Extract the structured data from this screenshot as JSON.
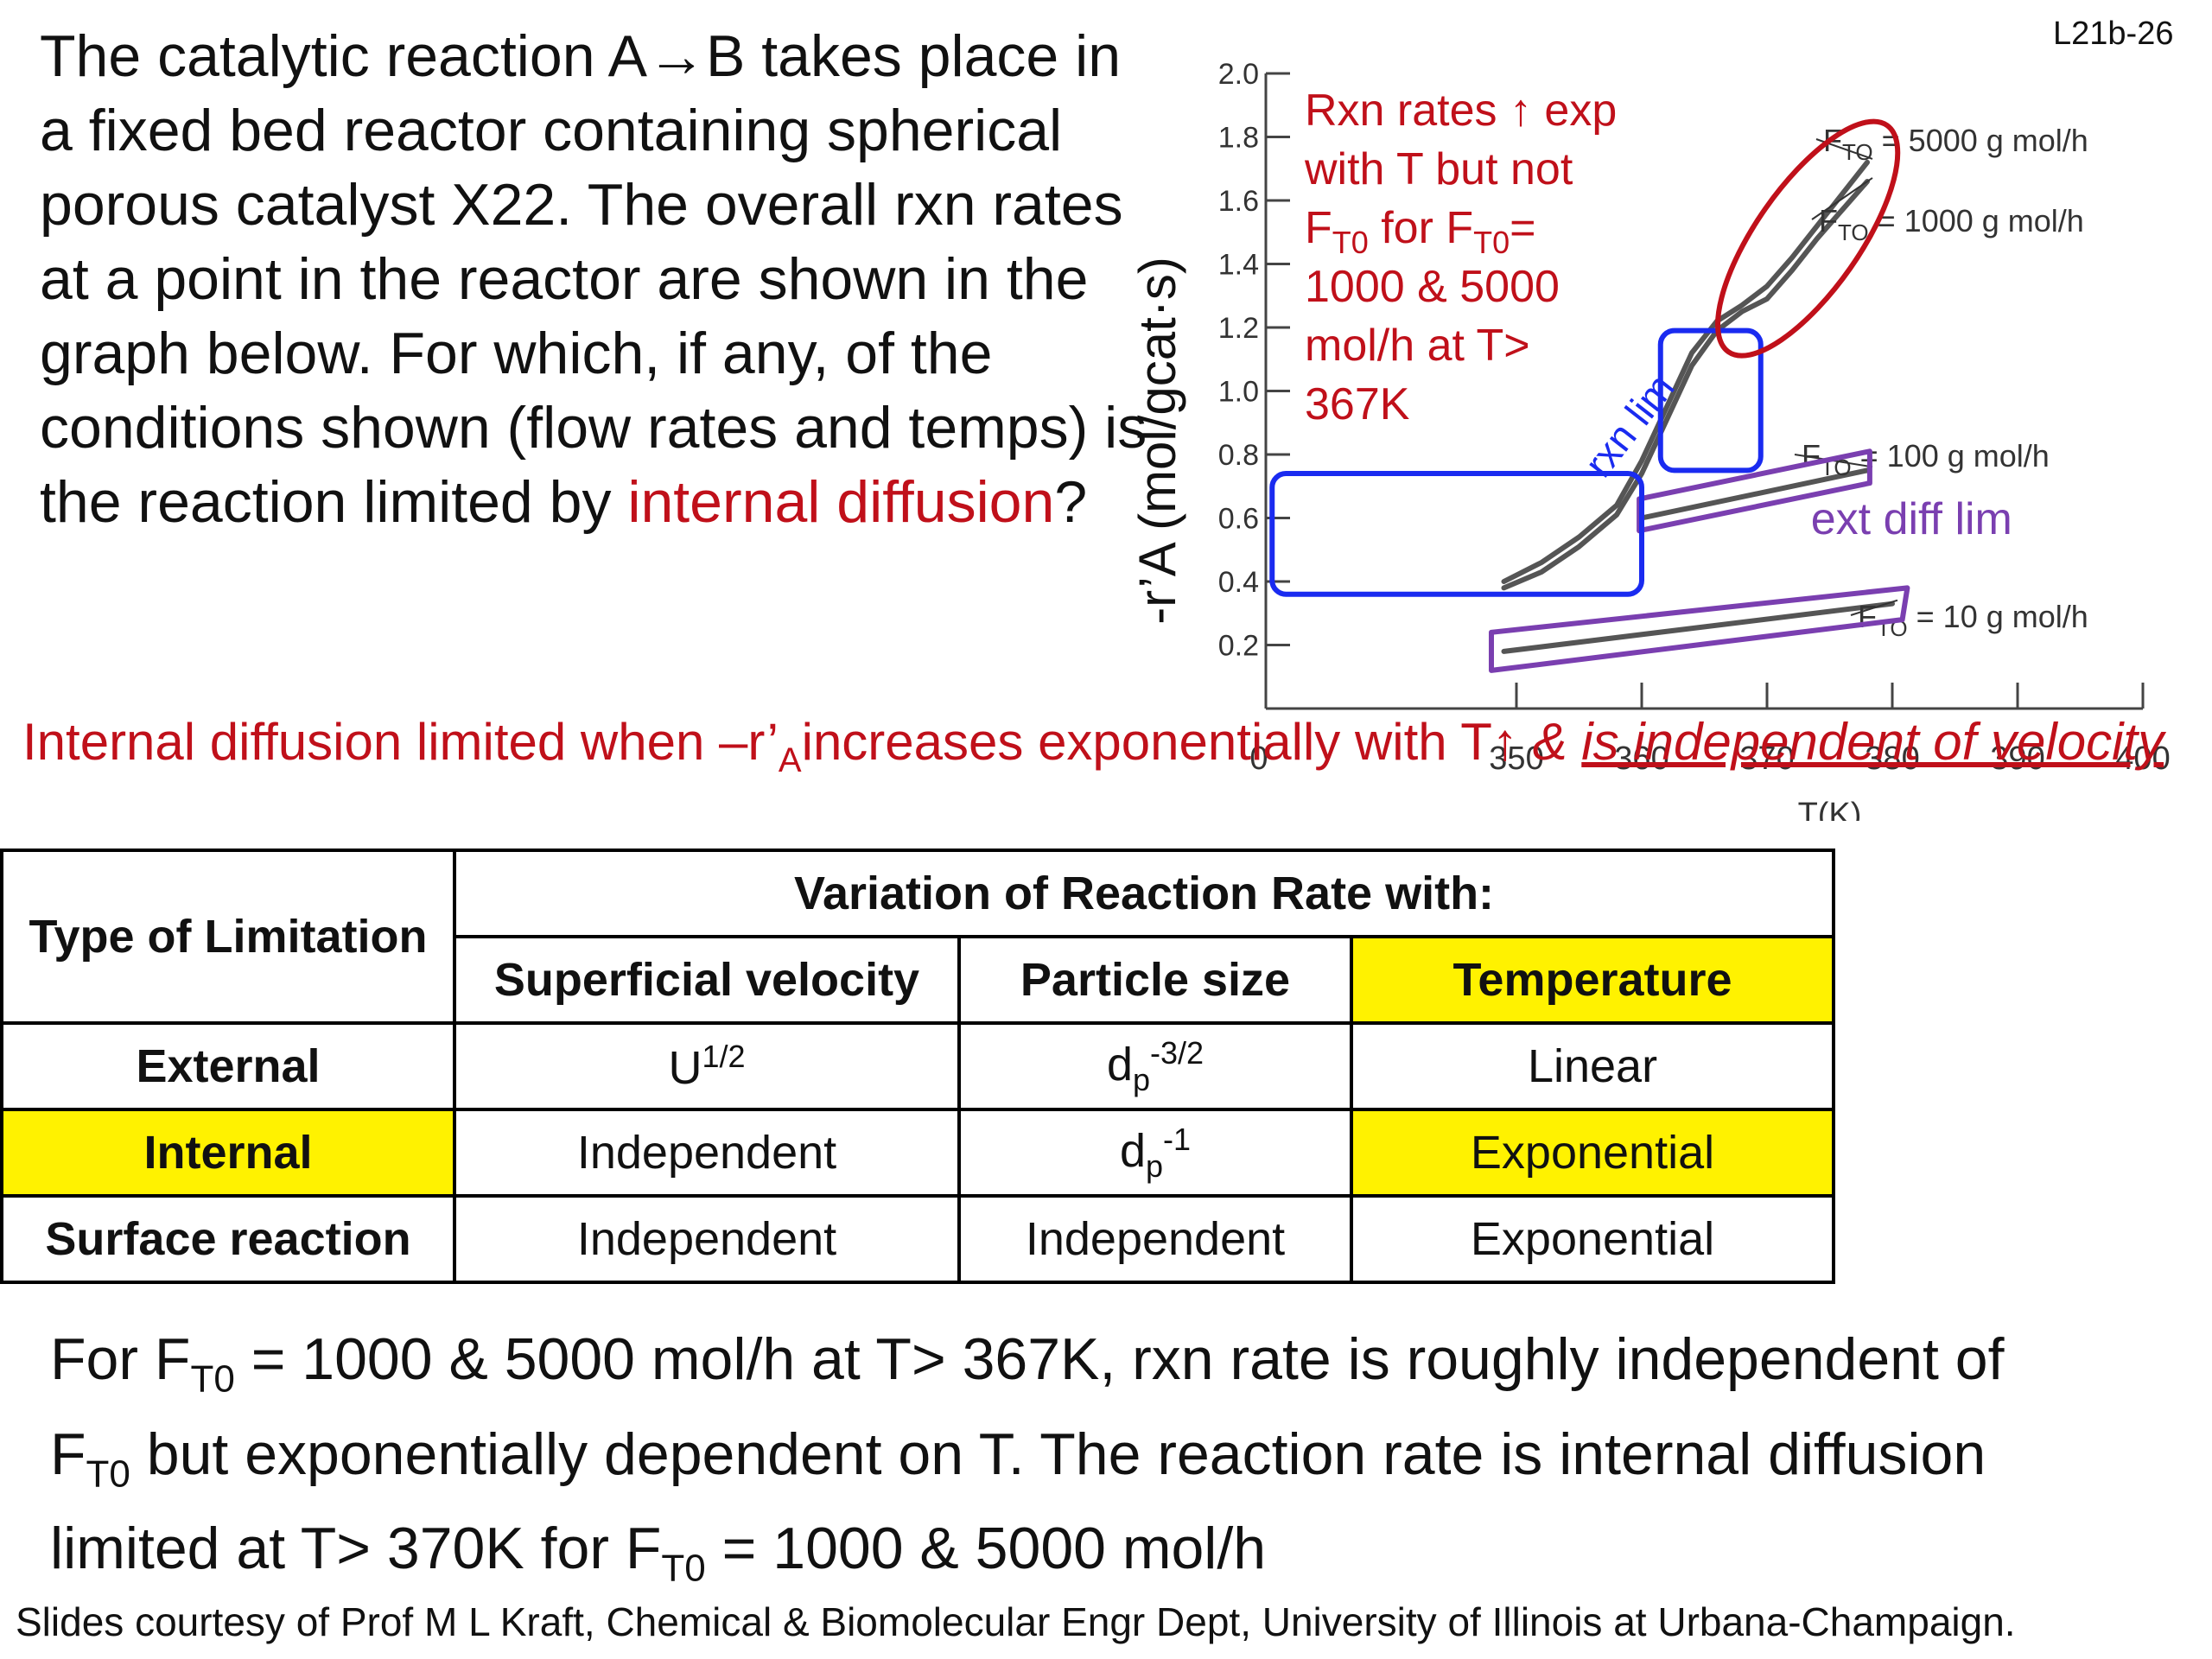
{
  "slide_number": "L21b-26",
  "question": {
    "before": "The catalytic reaction A→B takes place in a fixed bed reactor containing spherical porous catalyst X22.  The overall rxn rates at a point in the reactor are shown in the graph below. For which, if any, of the conditions shown (flow rates and temps) is the reaction limited by ",
    "highlight": "internal diffusion",
    "after": "?"
  },
  "annotation": {
    "part1": "Internal diffusion limited when  –r’",
    "sub": "A",
    "part2": "increases exponentially with T↑ ",
    "part3": "& ",
    "part4": "is independent of velocity"
  },
  "chart_data": {
    "type": "line",
    "xlabel": "T(K)",
    "ylabel": "-r’A (mol/gcat·s)",
    "xlim": [
      330,
      400
    ],
    "ylim": [
      0,
      2.0
    ],
    "x_ticks": [
      "0",
      "350",
      "360",
      "370",
      "380",
      "390",
      "400"
    ],
    "y_ticks": [
      "0.2",
      "0.4",
      "0.6",
      "0.8",
      "1.0",
      "1.2",
      "1.4",
      "1.6",
      "1.8",
      "2.0"
    ],
    "series": [
      {
        "name": "FTO = 5000 g mol/h",
        "x": [
          349,
          352,
          355,
          358,
          360,
          362,
          364,
          366,
          368,
          370,
          372,
          374,
          376,
          378
        ],
        "y": [
          0.4,
          0.46,
          0.54,
          0.64,
          0.78,
          0.95,
          1.12,
          1.22,
          1.27,
          1.33,
          1.42,
          1.52,
          1.62,
          1.72
        ]
      },
      {
        "name": "FTO = 1000 g mol/h",
        "x": [
          349,
          352,
          355,
          358,
          360,
          362,
          364,
          366,
          368,
          370,
          372,
          374,
          376,
          378
        ],
        "y": [
          0.38,
          0.43,
          0.51,
          0.61,
          0.74,
          0.91,
          1.08,
          1.19,
          1.25,
          1.29,
          1.38,
          1.48,
          1.57,
          1.66
        ]
      },
      {
        "name": "FTO = 100 g mol/h",
        "x": [
          360,
          378
        ],
        "y": [
          0.6,
          0.75
        ]
      },
      {
        "name": "FTO = 10 g mol/h",
        "x": [
          349,
          380
        ],
        "y": [
          0.18,
          0.33
        ]
      }
    ],
    "series_labels": {
      "s5000": {
        "pre": "F",
        "sub": "TO",
        "post": " = 5000 g mol/h"
      },
      "s1000": {
        "pre": "F",
        "sub": "TO",
        "post": " = 1000 g mol/h"
      },
      "s100": {
        "pre": "F",
        "sub": "TO",
        "post": " = 100 g mol/h"
      },
      "s10": {
        "pre": "F",
        "sub": "TO",
        "post": " = 10 g mol/h"
      }
    },
    "annotations": {
      "red_lines": [
        "Rxn rates ↑ exp",
        "with T but not",
        "F_T0 for F_T0=",
        "1000 & 5000",
        "mol/h at T>",
        "367K"
      ],
      "rxn_lim": "rxn lim",
      "ext_diff_lim": "ext diff lim"
    },
    "colors": {
      "curve": "#555555",
      "axis": "#444444",
      "red": "#c0101a",
      "blue": "#1a2bf0",
      "purple": "#7a3fb0"
    }
  },
  "table": {
    "header_type": "Type of Limitation",
    "header_variation": "Variation of Reaction Rate with:",
    "col_velocity": "Superficial velocity",
    "col_particle": "Particle size",
    "col_temperature": "Temperature",
    "rows": [
      {
        "type": "External",
        "velocity_base": "U",
        "velocity_sup": "1/2",
        "particle_base": "d",
        "particle_sub": "p",
        "particle_sup": "-3/2",
        "temperature": "Linear"
      },
      {
        "type": "Internal",
        "velocity": "Independent",
        "particle_base": "d",
        "particle_sub": "p",
        "particle_sup": "-1",
        "temperature": "Exponential"
      },
      {
        "type": "Surface reaction",
        "velocity": "Independent",
        "particle": "Independent",
        "temperature": "Exponential"
      }
    ],
    "highlight_color": "#fff200"
  },
  "conclusion": {
    "l1_a": "For F",
    "l1_sub": "T0",
    "l1_b": " = 1000 & 5000 mol/h at T> 367K, rxn rate is roughly independent of",
    "l2_a": "F",
    "l2_sub": "T0",
    "l2_b": " but exponentially dependent on T.  The reaction rate is internal diffusion",
    "l3_a": "limited at T> 370K for  F",
    "l3_sub": "T0",
    "l3_b": " = 1000 & 5000 mol/h"
  },
  "credit": "Slides courtesy of Prof M L Kraft, Chemical & Biomolecular Engr Dept, University of Illinois at Urbana-Champaign."
}
